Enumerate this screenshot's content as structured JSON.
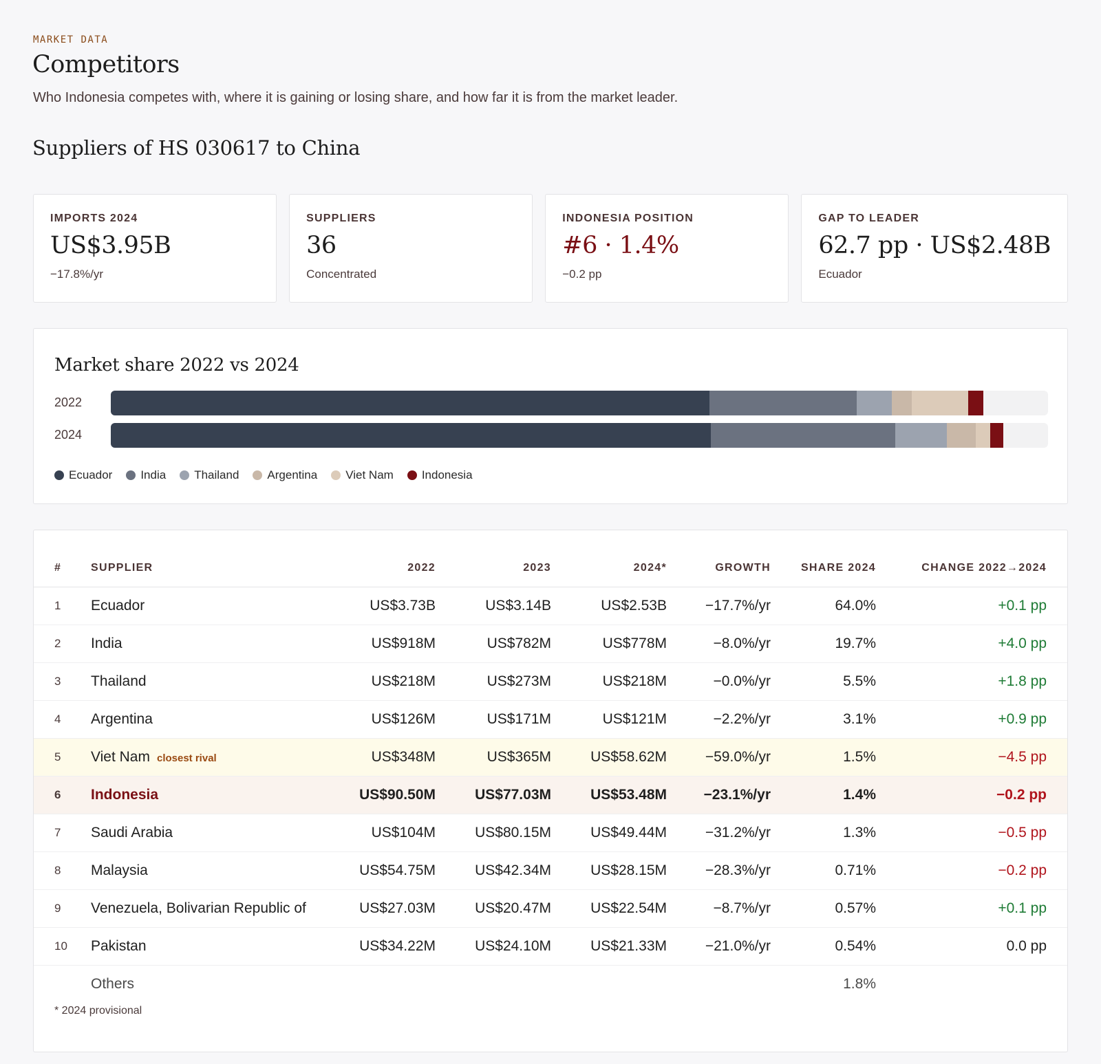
{
  "header": {
    "eyebrow": "MARKET DATA",
    "title": "Competitors",
    "subtitle": "Who Indonesia competes with, where it is gaining or losing share, and how far it is from the market leader."
  },
  "section_title": "Suppliers of HS 030617 to China",
  "kpis": [
    {
      "label": "IMPORTS 2024",
      "value": "US$3.95B",
      "sub": "−17.8%/yr"
    },
    {
      "label": "SUPPLIERS",
      "value": "36",
      "sub": "Concentrated"
    },
    {
      "label": "INDONESIA POSITION",
      "value": "#6 · 1.4%",
      "sub": "−0.2 pp"
    },
    {
      "label": "GAP TO LEADER",
      "value": "62.7 pp · US$2.48B",
      "sub": "Ecuador"
    }
  ],
  "colors": {
    "Ecuador": "#374151",
    "India": "#6b7280",
    "Thailand": "#9ca3af",
    "Argentina": "#c9b8a8",
    "Viet Nam": "#dccbb9",
    "Indonesia": "#7a0f14",
    "accent": "#7a0f14",
    "positive": "#1e7b35",
    "negative": "#b0141c"
  },
  "chart_data": {
    "type": "bar",
    "title": "Market share 2022 vs 2024",
    "stacked": true,
    "orientation": "horizontal",
    "categories": [
      "2022",
      "2024"
    ],
    "xlim": [
      0,
      100
    ],
    "legend_position": "bottom-left",
    "series": [
      {
        "name": "Ecuador",
        "values": [
          63.9,
          64.0
        ]
      },
      {
        "name": "India",
        "values": [
          15.7,
          19.7
        ]
      },
      {
        "name": "Thailand",
        "values": [
          3.7,
          5.5
        ]
      },
      {
        "name": "Argentina",
        "values": [
          2.2,
          3.1
        ]
      },
      {
        "name": "Viet Nam",
        "values": [
          6.0,
          1.5
        ]
      },
      {
        "name": "Indonesia",
        "values": [
          1.6,
          1.4
        ]
      }
    ]
  },
  "table": {
    "headers": {
      "rank": "#",
      "supplier": "SUPPLIER",
      "y2022": "2022",
      "y2023": "2023",
      "y2024": "2024*",
      "growth": "GROWTH",
      "share": "SHARE 2024",
      "change": "CHANGE 2022→2024"
    },
    "rows": [
      {
        "rank": "1",
        "supplier": "Ecuador",
        "y2022": "US$3.73B",
        "y2023": "US$3.14B",
        "y2024": "US$2.53B",
        "growth": "−17.7%/yr",
        "share": "64.0%",
        "change": "+0.1 pp",
        "dir": "pos"
      },
      {
        "rank": "2",
        "supplier": "India",
        "y2022": "US$918M",
        "y2023": "US$782M",
        "y2024": "US$778M",
        "growth": "−8.0%/yr",
        "share": "19.7%",
        "change": "+4.0 pp",
        "dir": "pos"
      },
      {
        "rank": "3",
        "supplier": "Thailand",
        "y2022": "US$218M",
        "y2023": "US$273M",
        "y2024": "US$218M",
        "growth": "−0.0%/yr",
        "share": "5.5%",
        "change": "+1.8 pp",
        "dir": "pos"
      },
      {
        "rank": "4",
        "supplier": "Argentina",
        "y2022": "US$126M",
        "y2023": "US$171M",
        "y2024": "US$121M",
        "growth": "−2.2%/yr",
        "share": "3.1%",
        "change": "+0.9 pp",
        "dir": "pos"
      },
      {
        "rank": "5",
        "supplier": "Viet Nam",
        "tag": "closest rival",
        "y2022": "US$348M",
        "y2023": "US$365M",
        "y2024": "US$58.62M",
        "growth": "−59.0%/yr",
        "share": "1.5%",
        "change": "−4.5 pp",
        "dir": "neg",
        "highlight": "rival"
      },
      {
        "rank": "6",
        "supplier": "Indonesia",
        "y2022": "US$90.50M",
        "y2023": "US$77.03M",
        "y2024": "US$53.48M",
        "growth": "−23.1%/yr",
        "share": "1.4%",
        "change": "−0.2 pp",
        "dir": "neg",
        "highlight": "self"
      },
      {
        "rank": "7",
        "supplier": "Saudi Arabia",
        "y2022": "US$104M",
        "y2023": "US$80.15M",
        "y2024": "US$49.44M",
        "growth": "−31.2%/yr",
        "share": "1.3%",
        "change": "−0.5 pp",
        "dir": "neg"
      },
      {
        "rank": "8",
        "supplier": "Malaysia",
        "y2022": "US$54.75M",
        "y2023": "US$42.34M",
        "y2024": "US$28.15M",
        "growth": "−28.3%/yr",
        "share": "0.71%",
        "change": "−0.2 pp",
        "dir": "neg"
      },
      {
        "rank": "9",
        "supplier": "Venezuela, Bolivarian Republic of",
        "y2022": "US$27.03M",
        "y2023": "US$20.47M",
        "y2024": "US$22.54M",
        "growth": "−8.7%/yr",
        "share": "0.57%",
        "change": "+0.1 pp",
        "dir": "pos"
      },
      {
        "rank": "10",
        "supplier": "Pakistan",
        "y2022": "US$34.22M",
        "y2023": "US$24.10M",
        "y2024": "US$21.33M",
        "growth": "−21.0%/yr",
        "share": "0.54%",
        "change": "0.0 pp",
        "dir": "neu"
      }
    ],
    "others": {
      "supplier": "Others",
      "share": "1.8%"
    },
    "footnote": "* 2024 provisional"
  }
}
